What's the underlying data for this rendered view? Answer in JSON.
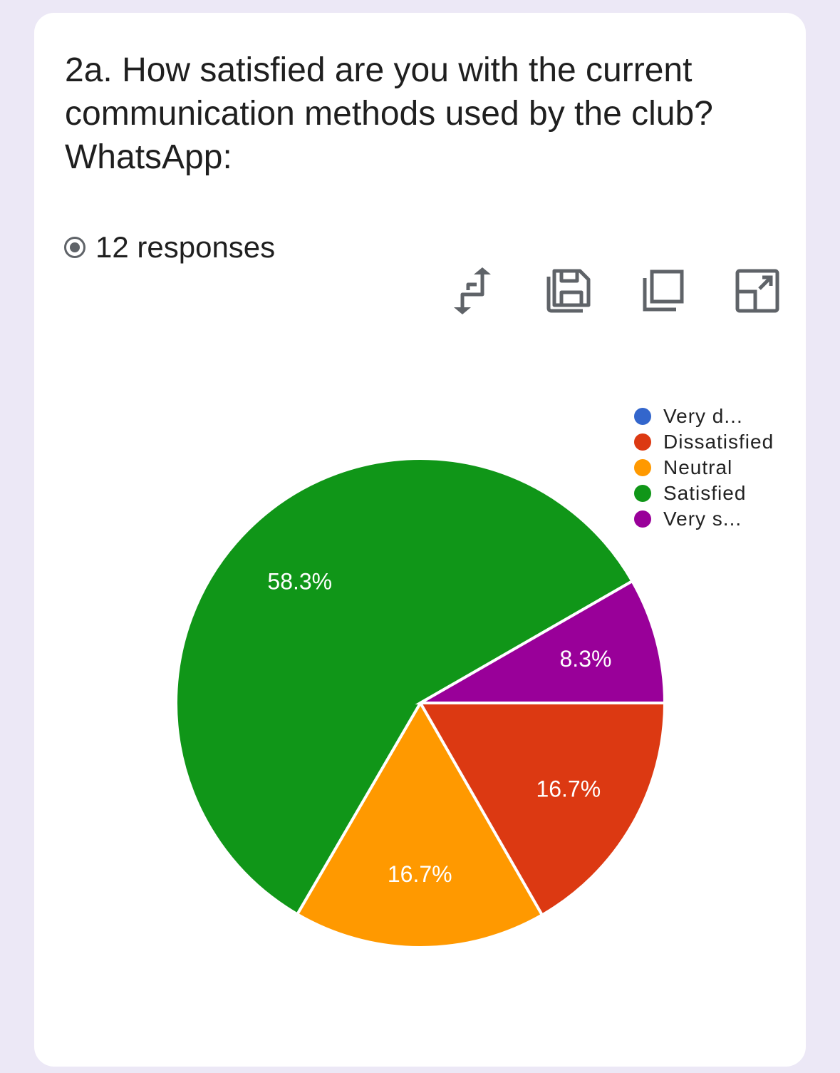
{
  "question": "2a. How satisfied are you with the current communication methods used by the club? WhatsApp:",
  "responses_label": "12 responses",
  "toolbar": {
    "icons": [
      "swap-icon",
      "save-icon",
      "copy-icon",
      "expand-icon"
    ]
  },
  "chart_data": {
    "type": "pie",
    "categories": [
      "Very d...",
      "Dissatisfied",
      "Neutral",
      "Satisfied",
      "Very s..."
    ],
    "values": [
      0,
      16.7,
      16.7,
      58.3,
      8.3
    ],
    "labels": [
      "",
      "16.7%",
      "16.7%",
      "58.3%",
      "8.3%"
    ],
    "colors": [
      "#3366cc",
      "#dc3912",
      "#ff9900",
      "#109618",
      "#990099"
    ],
    "legend": "top-right"
  }
}
